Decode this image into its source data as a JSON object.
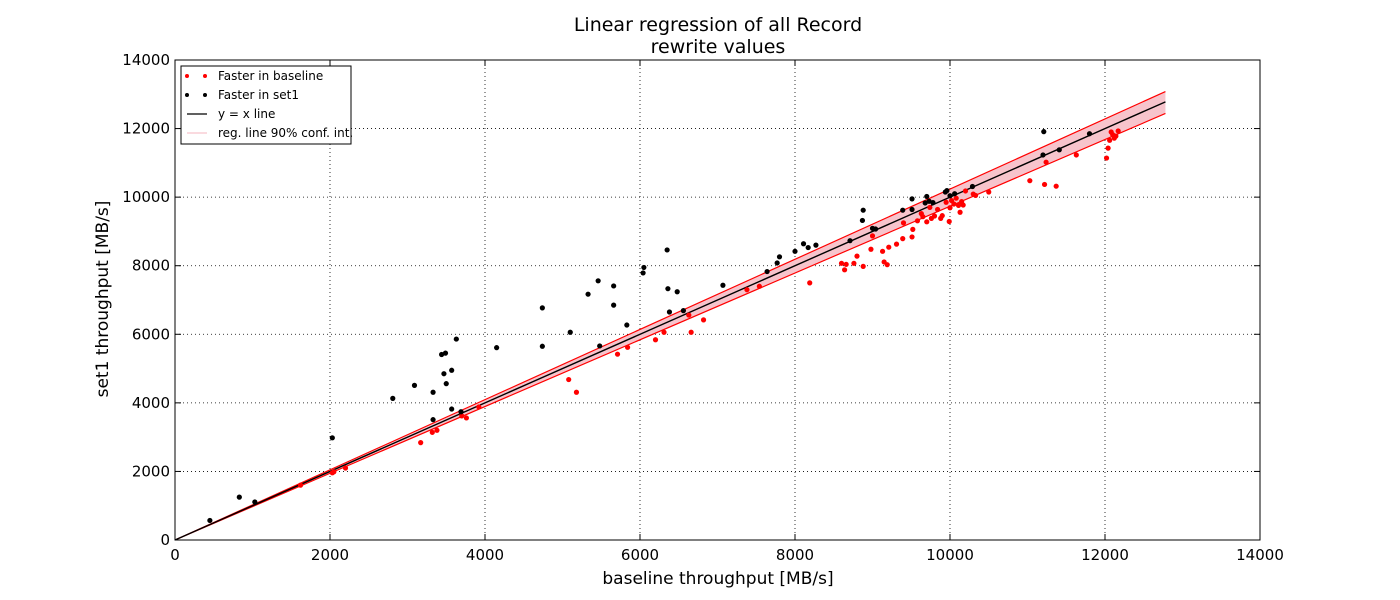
{
  "chart_data": {
    "type": "scatter",
    "title": "Linear regression of all Record",
    "subtitle": "rewrite values",
    "xlabel": "baseline throughput [MB/s]",
    "ylabel": "set1 throughput [MB/s]",
    "xlim": [
      0,
      14000
    ],
    "ylim": [
      0,
      14000
    ],
    "xticks": [
      0,
      2000,
      4000,
      6000,
      8000,
      10000,
      12000,
      14000
    ],
    "yticks": [
      0,
      2000,
      4000,
      6000,
      8000,
      10000,
      12000,
      14000
    ],
    "grid": true,
    "legend_position": "top-left",
    "legend": {
      "baseline_label": "Faster in baseline",
      "set1_label": "Faster in set1",
      "xy_label": "y = x line",
      "conf_label": "reg. line 90% conf. int."
    },
    "colors": {
      "baseline": "#ff0000",
      "set1": "#000000",
      "xy_line": "#000000",
      "conf_line": "#ff0000",
      "conf_fill": "#f7c4cc"
    },
    "reference_line": {
      "name": "y = x line",
      "x": [
        0,
        12780
      ],
      "y": [
        0,
        12780
      ]
    },
    "regression_band": {
      "x": [
        0,
        12780
      ],
      "lower": [
        0,
        12440
      ],
      "upper": [
        0,
        13080
      ]
    },
    "series": [
      {
        "name": "Faster in baseline",
        "color": "#ff0000",
        "points": [
          [
            1620,
            1600
          ],
          [
            2030,
            1960
          ],
          [
            2050,
            1990
          ],
          [
            2200,
            2100
          ],
          [
            3170,
            2840
          ],
          [
            3320,
            3140
          ],
          [
            3380,
            3200
          ],
          [
            3700,
            3620
          ],
          [
            3760,
            3560
          ],
          [
            3920,
            3880
          ],
          [
            5080,
            4680
          ],
          [
            5180,
            4310
          ],
          [
            5710,
            5420
          ],
          [
            5840,
            5620
          ],
          [
            6200,
            5840
          ],
          [
            6310,
            6060
          ],
          [
            6630,
            6560
          ],
          [
            6660,
            6060
          ],
          [
            6820,
            6420
          ],
          [
            7380,
            7300
          ],
          [
            7540,
            7400
          ],
          [
            8190,
            7500
          ],
          [
            8600,
            8070
          ],
          [
            8640,
            7880
          ],
          [
            8660,
            8040
          ],
          [
            8760,
            8070
          ],
          [
            8800,
            8280
          ],
          [
            8880,
            7980
          ],
          [
            8980,
            8480
          ],
          [
            9000,
            8870
          ],
          [
            9130,
            8420
          ],
          [
            9150,
            8110
          ],
          [
            9190,
            8030
          ],
          [
            9210,
            8540
          ],
          [
            9310,
            8630
          ],
          [
            9390,
            8790
          ],
          [
            9400,
            9250
          ],
          [
            9510,
            8840
          ],
          [
            9520,
            9060
          ],
          [
            9580,
            9310
          ],
          [
            9630,
            9520
          ],
          [
            9650,
            9430
          ],
          [
            9700,
            9280
          ],
          [
            9740,
            9700
          ],
          [
            9760,
            9380
          ],
          [
            9800,
            9450
          ],
          [
            9840,
            9640
          ],
          [
            9880,
            9380
          ],
          [
            9900,
            9460
          ],
          [
            9950,
            9850
          ],
          [
            9990,
            9290
          ],
          [
            10000,
            9690
          ],
          [
            10020,
            9900
          ],
          [
            10050,
            9800
          ],
          [
            10080,
            9970
          ],
          [
            10110,
            9760
          ],
          [
            10130,
            9560
          ],
          [
            10150,
            9870
          ],
          [
            10170,
            9770
          ],
          [
            10200,
            10180
          ],
          [
            10300,
            10090
          ],
          [
            10330,
            10050
          ],
          [
            10500,
            10150
          ],
          [
            11030,
            10480
          ],
          [
            11220,
            10370
          ],
          [
            11240,
            11020
          ],
          [
            11370,
            10320
          ],
          [
            11630,
            11230
          ],
          [
            12020,
            11140
          ],
          [
            12040,
            11430
          ],
          [
            12060,
            11660
          ],
          [
            12080,
            11900
          ],
          [
            12100,
            11820
          ],
          [
            12120,
            11720
          ],
          [
            12140,
            11780
          ],
          [
            12170,
            11930
          ]
        ]
      },
      {
        "name": "Faster in set1",
        "color": "#000000",
        "points": [
          [
            450,
            570
          ],
          [
            830,
            1250
          ],
          [
            1030,
            1110
          ],
          [
            2030,
            2980
          ],
          [
            2810,
            4130
          ],
          [
            3090,
            4510
          ],
          [
            3330,
            4310
          ],
          [
            3330,
            3510
          ],
          [
            3440,
            5410
          ],
          [
            3470,
            4850
          ],
          [
            3490,
            5450
          ],
          [
            3500,
            4560
          ],
          [
            3570,
            4950
          ],
          [
            3570,
            3820
          ],
          [
            3630,
            5860
          ],
          [
            3690,
            3740
          ],
          [
            4150,
            5610
          ],
          [
            4740,
            6770
          ],
          [
            4740,
            5650
          ],
          [
            5100,
            6060
          ],
          [
            5330,
            7170
          ],
          [
            5460,
            7560
          ],
          [
            5480,
            5660
          ],
          [
            5660,
            6850
          ],
          [
            5660,
            7410
          ],
          [
            5830,
            6270
          ],
          [
            6040,
            7790
          ],
          [
            6050,
            7950
          ],
          [
            6350,
            8460
          ],
          [
            6360,
            7330
          ],
          [
            6380,
            6650
          ],
          [
            6480,
            7240
          ],
          [
            6560,
            6690
          ],
          [
            7070,
            7430
          ],
          [
            7640,
            7830
          ],
          [
            7770,
            8080
          ],
          [
            7800,
            8260
          ],
          [
            8000,
            8420
          ],
          [
            8110,
            8640
          ],
          [
            8170,
            8530
          ],
          [
            8270,
            8600
          ],
          [
            8710,
            8730
          ],
          [
            8870,
            9320
          ],
          [
            8880,
            9620
          ],
          [
            9000,
            9090
          ],
          [
            9040,
            9070
          ],
          [
            9390,
            9620
          ],
          [
            9510,
            9950
          ],
          [
            9510,
            9640
          ],
          [
            9680,
            9830
          ],
          [
            9700,
            10020
          ],
          [
            9730,
            9880
          ],
          [
            9780,
            9840
          ],
          [
            9940,
            10150
          ],
          [
            9960,
            10190
          ],
          [
            10000,
            10040
          ],
          [
            10060,
            10100
          ],
          [
            10290,
            10310
          ],
          [
            11200,
            11230
          ],
          [
            11210,
            11910
          ],
          [
            11410,
            11380
          ],
          [
            11800,
            11850
          ]
        ]
      }
    ]
  }
}
